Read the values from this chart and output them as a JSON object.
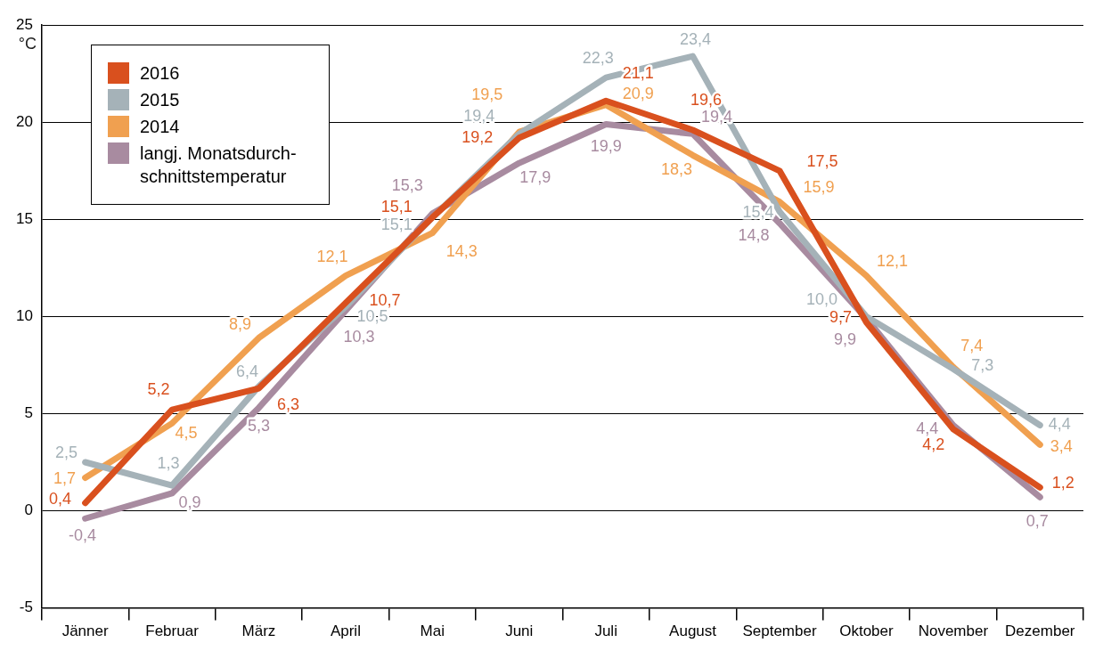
{
  "chart_data": {
    "type": "line",
    "ylabel": "°C",
    "categories": [
      "Jänner",
      "Februar",
      "März",
      "April",
      "Mai",
      "Juni",
      "Juli",
      "August",
      "September",
      "Oktober",
      "November",
      "Dezember"
    ],
    "series": [
      {
        "name": "2016",
        "color": "#d9501e",
        "values": [
          0.4,
          5.2,
          6.3,
          10.7,
          15.1,
          19.2,
          21.1,
          19.6,
          17.5,
          9.7,
          4.2,
          1.2
        ],
        "value_labels": [
          "0,4",
          "5,2",
          "6,3",
          "10,7",
          "15,1",
          "19,2",
          "21,1",
          "19,6",
          "17,5",
          "9,7",
          "4,2",
          "1,2"
        ]
      },
      {
        "name": "2015",
        "color": "#a5b2b8",
        "values": [
          2.5,
          1.3,
          6.4,
          10.5,
          15.1,
          19.4,
          22.3,
          23.4,
          15.4,
          10.0,
          7.3,
          4.4
        ],
        "value_labels": [
          "2,5",
          "1,3",
          "6,4",
          "10,5",
          "15,1",
          "19,4",
          "22,3",
          "23,4",
          "15,4",
          "10,0",
          "7,3",
          "4,4"
        ]
      },
      {
        "name": "2014",
        "color": "#f0a050",
        "values": [
          1.7,
          4.5,
          8.9,
          12.1,
          14.3,
          19.5,
          20.9,
          18.3,
          15.9,
          12.1,
          7.4,
          3.4
        ],
        "value_labels": [
          "1,7",
          "4,5",
          "8,9",
          "12,1",
          "14,3",
          "19,5",
          "20,9",
          "18,3",
          "15,9",
          "12,1",
          "7,4",
          "3,4"
        ]
      },
      {
        "name": "langj. Monatsdurch-schnittstemperatur",
        "color": "#a88ba0",
        "values": [
          -0.4,
          0.9,
          5.3,
          10.3,
          15.3,
          17.9,
          19.9,
          19.4,
          14.8,
          9.9,
          4.4,
          0.7
        ],
        "value_labels": [
          "-0,4",
          "0,9",
          "5,3",
          "10,3",
          "15,3",
          "17,9",
          "19,9",
          "19,4",
          "14,8",
          "9,9",
          "4,4",
          "0,7"
        ]
      }
    ],
    "ylim": [
      -5,
      25
    ],
    "yticks": [
      -5,
      0,
      5,
      10,
      15,
      20,
      25
    ],
    "grid": "y",
    "legend": "top left",
    "marker": "none",
    "line_style": "solid"
  }
}
